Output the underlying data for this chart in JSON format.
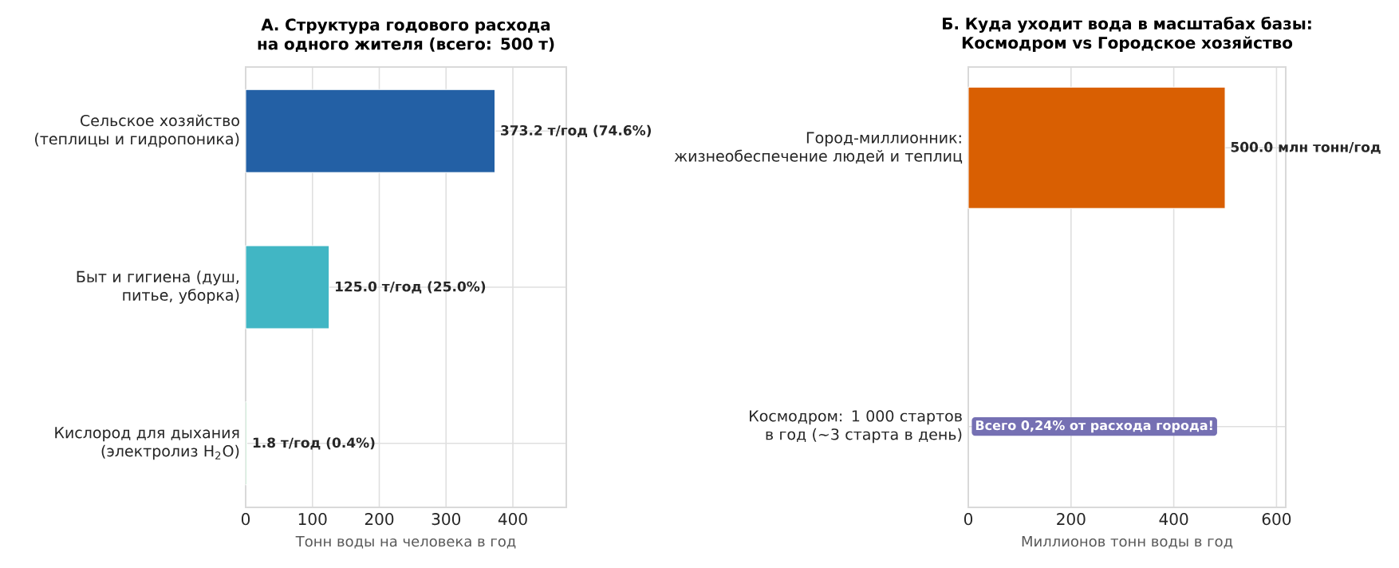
{
  "chart_data": [
    {
      "type": "bar",
      "orientation": "horizontal",
      "title": "А. Структура годового расхода на одного жителя (всего: 500 т)",
      "xlabel": "Тонн воды на человека в год",
      "categories": [
        "Сельское хозяйство (теплицы и гидропоника)",
        "Быт и гигиена (душ, питье, уборка)",
        "Кислород для дыхания (электролиз H$_{2}$O)"
      ],
      "values": [
        373.2,
        125.0,
        1.8
      ],
      "colors": [
        "#2360a5",
        "#41b6c4",
        "#a1dab4"
      ],
      "value_labels": [
        "373.2 т/год (74.6%)",
        "125.0 т/год (25.0%)",
        "1.8 т/год (0.4%)"
      ],
      "xlim": [
        0,
        480
      ],
      "xticks": [
        0,
        100,
        200,
        300,
        400
      ],
      "grid": true
    },
    {
      "type": "bar",
      "orientation": "horizontal",
      "title": "Б. Куда уходит вода в масштабах базы: Космодром vs Городское хозяйство",
      "xlabel": "Миллионов тонн воды в год",
      "categories": [
        "Город-миллионник: жизнеобеспечение людей и теплиц",
        "Космодром: 1 000 стартов в год (~3 старта в день)"
      ],
      "values": [
        500.0,
        null
      ],
      "colors": [
        "#d95f02",
        "#7570b3"
      ],
      "value_labels": [
        "500.0 млн тонн/год",
        null
      ],
      "annotations": [
        "Всего 0,24% от расхода города!"
      ],
      "xlim": [
        0,
        618
      ],
      "xticks": [
        0,
        200,
        400,
        600
      ],
      "grid": true
    }
  ]
}
